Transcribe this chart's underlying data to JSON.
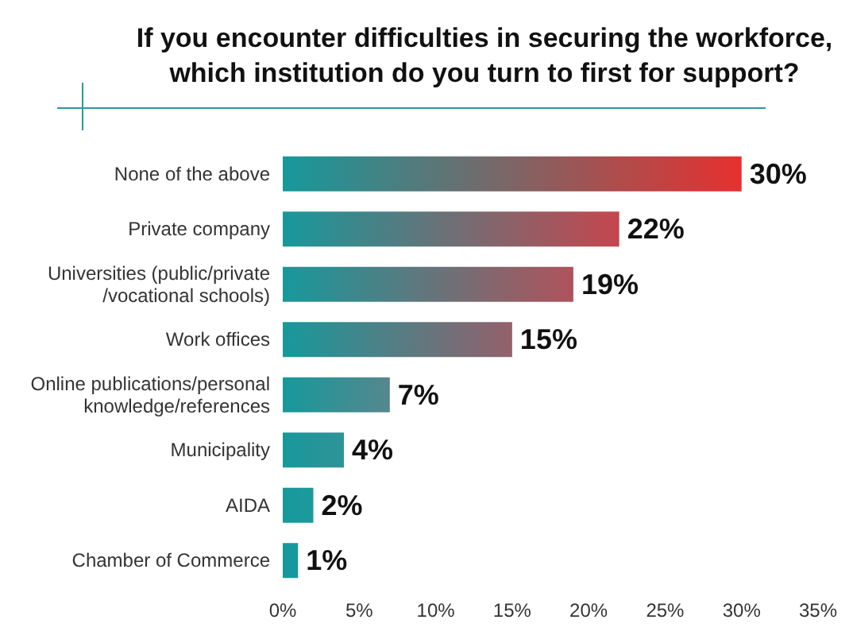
{
  "chart_data": {
    "type": "bar",
    "orientation": "horizontal",
    "title": "If you encounter difficulties in securing the workforce,\nwhich institution do you turn to first for support?",
    "categories": [
      "None of the above",
      "Private company",
      "Universities (public/private\n/vocational schools)",
      "Work offices",
      "Online publications/personal\nknowledge/references",
      "Municipality",
      "AIDA",
      "Chamber of Commerce"
    ],
    "values": [
      30,
      22,
      19,
      15,
      7,
      4,
      2,
      1
    ],
    "value_labels": [
      "30%",
      "22%",
      "19%",
      "15%",
      "7%",
      "4%",
      "2%",
      "1%"
    ],
    "colors": [
      "#e6302f",
      "#c5464f",
      "#b0525b",
      "#94606b",
      "#55878d",
      "#2f9397",
      "#1e999b",
      "#16999c"
    ],
    "xlim": [
      0,
      35
    ],
    "xticks": [
      {
        "value": 0,
        "label": "0%"
      },
      {
        "value": 5,
        "label": "5%"
      },
      {
        "value": 10,
        "label": "10%"
      },
      {
        "value": 15,
        "label": "15%"
      },
      {
        "value": 20,
        "label": "20%"
      },
      {
        "value": 25,
        "label": "25%"
      },
      {
        "value": 30,
        "label": "30%"
      },
      {
        "value": 35,
        "label": "35%"
      }
    ],
    "grid": false
  }
}
